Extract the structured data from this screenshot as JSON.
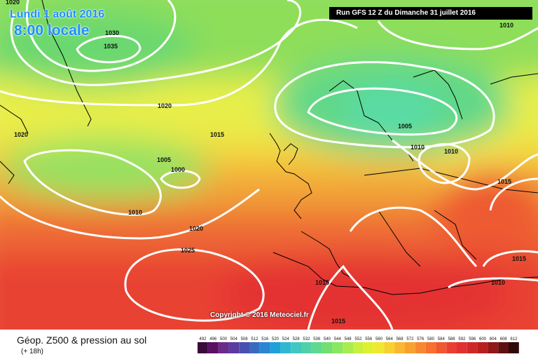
{
  "header": {
    "date_label": "Lundi 1 août 2016",
    "time_label": "8:00 locale",
    "run_label": "Run GFS 12 Z du Dimanche 31 juillet 2016"
  },
  "copyright": "Copyright © 2016 Meteociel.fr",
  "footer": {
    "title": "Géop. Z500 & pression au sol",
    "subtitle": "(+ 18h)"
  },
  "isobar_labels": [
    "1020",
    "1030",
    "1035",
    "1020",
    "1020",
    "1015",
    "1005",
    "1000",
    "1010",
    "1020",
    "1025",
    "1010",
    "1005",
    "1010",
    "1010",
    "1015",
    "1015",
    "1010",
    "1015",
    "1015"
  ],
  "legend": {
    "values": [
      "492",
      "496",
      "500",
      "504",
      "508",
      "512",
      "516",
      "520",
      "524",
      "528",
      "532",
      "536",
      "540",
      "544",
      "548",
      "552",
      "556",
      "560",
      "564",
      "568",
      "572",
      "576",
      "580",
      "584",
      "588",
      "592",
      "596",
      "600",
      "604",
      "608",
      "612"
    ],
    "colors": [
      "#3a0a3a",
      "#5a1060",
      "#6a2a8a",
      "#5a3aa0",
      "#4a50b0",
      "#3a6ac0",
      "#2a86d0",
      "#20a0d8",
      "#30b8d0",
      "#40c8c0",
      "#50d0a8",
      "#60d890",
      "#70e070",
      "#88e860",
      "#a8ec50",
      "#c8f040",
      "#e0f030",
      "#f0e830",
      "#f8d030",
      "#f8b830",
      "#f8a030",
      "#f88830",
      "#f87030",
      "#f05830",
      "#e84030",
      "#e03030",
      "#d02828",
      "#b82020",
      "#901818",
      "#601010",
      "#300808"
    ]
  },
  "colors": {
    "title_blue": "#1e90ff",
    "isobar": "#ffffff",
    "coast": "#000000"
  }
}
